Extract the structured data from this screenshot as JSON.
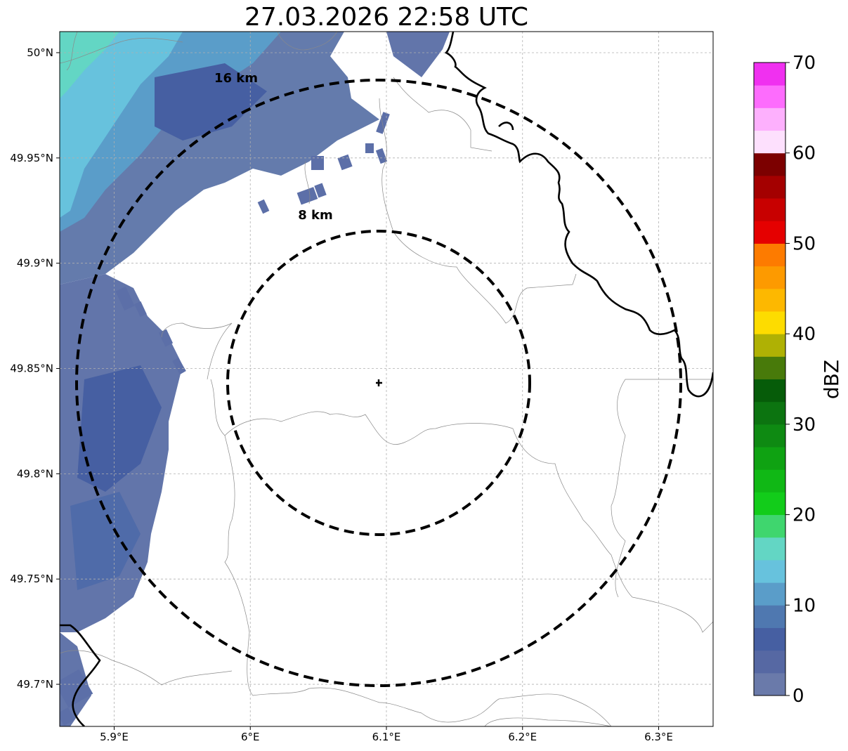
{
  "title": "27.03.2026 22:58 UTC",
  "map": {
    "lon_range": [
      5.86,
      6.34
    ],
    "lat_range": [
      49.68,
      50.01
    ],
    "x_ticks": [
      {
        "value": 5.9,
        "label": "5.9°E"
      },
      {
        "value": 6.0,
        "label": "6°E"
      },
      {
        "value": 6.1,
        "label": "6.1°E"
      },
      {
        "value": 6.2,
        "label": "6.2°E"
      },
      {
        "value": 6.3,
        "label": "6.3°E"
      }
    ],
    "y_ticks": [
      {
        "value": 50.0,
        "label": "50°N"
      },
      {
        "value": 49.95,
        "label": "49.95°N"
      },
      {
        "value": 49.9,
        "label": "49.9°N"
      },
      {
        "value": 49.85,
        "label": "49.85°N"
      },
      {
        "value": 49.8,
        "label": "49.8°N"
      },
      {
        "value": 49.75,
        "label": "49.75°N"
      },
      {
        "value": 49.7,
        "label": "49.7°N"
      }
    ],
    "grid": true,
    "radar_site": {
      "lon": 6.095,
      "lat": 49.843
    },
    "rings": [
      {
        "radius_km": 8,
        "label": "8 km"
      },
      {
        "radius_km": 16,
        "label": "16 km"
      }
    ]
  },
  "colorbar": {
    "label": "dBZ",
    "min": 0,
    "max": 70,
    "ticks": [
      "0",
      "10",
      "20",
      "30",
      "40",
      "50",
      "60",
      "70"
    ],
    "colors": [
      "#6a7aaa",
      "#5668a3",
      "#465fa2",
      "#4f78b0",
      "#5a9dc9",
      "#67c2dd",
      "#63d6c4",
      "#3fd66e",
      "#12cc1a",
      "#10b815",
      "#0fa212",
      "#0e8a12",
      "#0c7410",
      "#065c09",
      "#487a0a",
      "#afb104",
      "#fddc00",
      "#fdb800",
      "#fd9a00",
      "#fd7b00",
      "#e50000",
      "#c80000",
      "#a40000",
      "#7c0000",
      "#fde0fd",
      "#fdb0fd",
      "#fd6cfd",
      "#f030f0"
    ]
  }
}
